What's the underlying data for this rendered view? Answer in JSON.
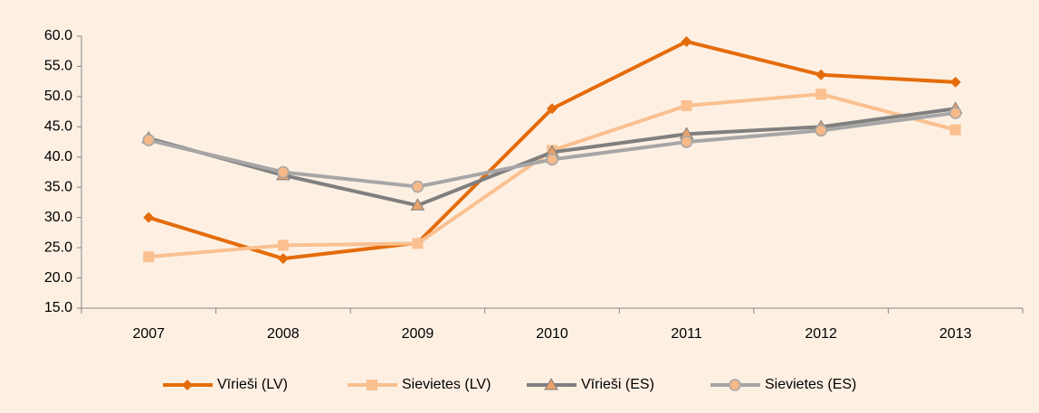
{
  "chart_data": {
    "type": "line",
    "categories": [
      "2007",
      "2008",
      "2009",
      "2010",
      "2011",
      "2012",
      "2013"
    ],
    "series": [
      {
        "name": "Vīrieši (LV)",
        "color": "#e46c0a",
        "marker": "diamond",
        "values": [
          30.0,
          23.2,
          25.8,
          48.0,
          59.1,
          53.6,
          52.4
        ]
      },
      {
        "name": "Sievietes (LV)",
        "color": "#fac090",
        "marker": "square",
        "values": [
          23.5,
          25.4,
          25.7,
          41.1,
          48.5,
          50.4,
          44.5
        ]
      },
      {
        "name": "Vīrieši (ES)",
        "color": "#7f7f7f",
        "marker": "triangle",
        "values": [
          43.1,
          37.0,
          32.0,
          40.8,
          43.8,
          45.0,
          48.0
        ]
      },
      {
        "name": "Sievietes (ES)",
        "color": "#a6a6a6",
        "marker": "circle",
        "values": [
          42.8,
          37.5,
          35.1,
          39.6,
          42.5,
          44.4,
          47.3
        ]
      }
    ],
    "ylim": [
      15,
      60
    ],
    "yticks": [
      {
        "value": 15,
        "label": "15.0"
      },
      {
        "value": 20,
        "label": "20.0"
      },
      {
        "value": 25,
        "label": "25.0"
      },
      {
        "value": 30,
        "label": "30.0"
      },
      {
        "value": 35,
        "label": "35.0"
      },
      {
        "value": 40,
        "label": "40.0"
      },
      {
        "value": 45,
        "label": "45.0"
      },
      {
        "value": 50,
        "label": "50.0"
      },
      {
        "value": 55,
        "label": "55.0"
      },
      {
        "value": 60,
        "label": "60.0"
      }
    ],
    "grid": false,
    "legend": "bottom"
  }
}
